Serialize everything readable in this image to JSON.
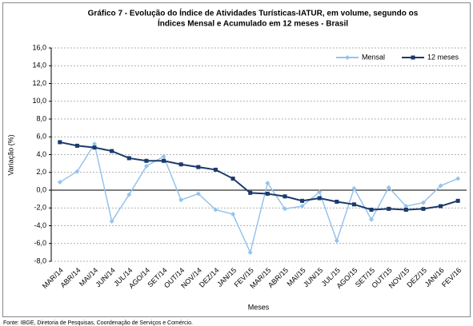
{
  "chart_data": {
    "type": "line",
    "title": [
      "Gráfico 7 - Evolução do Índice de Atividades Turísticas-IATUR, em volume, segundo os",
      "Índices Mensal e Acumulado em 12 meses - Brasil"
    ],
    "xlabel": "Meses",
    "ylabel": "Variação (%)",
    "source": "Fonte: IBGE, Diretoria de Pesquisas, Coordenação de Serviços e Comércio.",
    "categories": [
      "MAR/14",
      "ABR/14",
      "MAI/14",
      "JUN/14",
      "JUL/14",
      "AGO/14",
      "SET/14",
      "OUT/14",
      "NOV/14",
      "DEZ/14",
      "JAN/15",
      "FEV/15",
      "MAR/15",
      "ABR/15",
      "MAI/15",
      "JUN/15",
      "JUL/15",
      "AGO/15",
      "SET/15",
      "OUT/15",
      "NOV/15",
      "DEZ/15",
      "JAN/16",
      "FEV/16"
    ],
    "series": [
      {
        "name": "Mensal",
        "color": "#95c3ee",
        "marker": "diamond",
        "values": [
          0.9,
          2.1,
          5.2,
          -3.5,
          -0.5,
          2.7,
          3.8,
          -1.1,
          -0.4,
          -2.2,
          -2.7,
          -7.0,
          0.8,
          -2.1,
          -1.8,
          -0.2,
          -5.7,
          0.2,
          -3.3,
          0.3,
          -1.8,
          -1.4,
          0.5,
          1.3
        ]
      },
      {
        "name": "12 meses",
        "color": "#1a3a6b",
        "marker": "square",
        "values": [
          5.4,
          5.0,
          4.8,
          4.4,
          3.6,
          3.3,
          3.3,
          2.9,
          2.6,
          2.3,
          1.3,
          -0.3,
          -0.4,
          -0.7,
          -1.2,
          -0.9,
          -1.3,
          -1.6,
          -2.2,
          -2.1,
          -2.2,
          -2.1,
          -1.8,
          -1.2
        ]
      }
    ],
    "ylim": [
      -8,
      16
    ],
    "yticks": [
      {
        "value": -8,
        "label": "-8,0"
      },
      {
        "value": -6,
        "label": "-6,0"
      },
      {
        "value": -4,
        "label": "-4,0"
      },
      {
        "value": -2,
        "label": "-2,0"
      },
      {
        "value": 0,
        "label": "0,0"
      },
      {
        "value": 2,
        "label": "2,0"
      },
      {
        "value": 4,
        "label": "4,0"
      },
      {
        "value": 6,
        "label": "6,0"
      },
      {
        "value": 8,
        "label": "8,0"
      },
      {
        "value": 10,
        "label": "10,0"
      },
      {
        "value": 12,
        "label": "12,0"
      },
      {
        "value": 14,
        "label": "14,0"
      },
      {
        "value": 16,
        "label": "16,0"
      }
    ],
    "grid": true,
    "legend": "top-right"
  }
}
